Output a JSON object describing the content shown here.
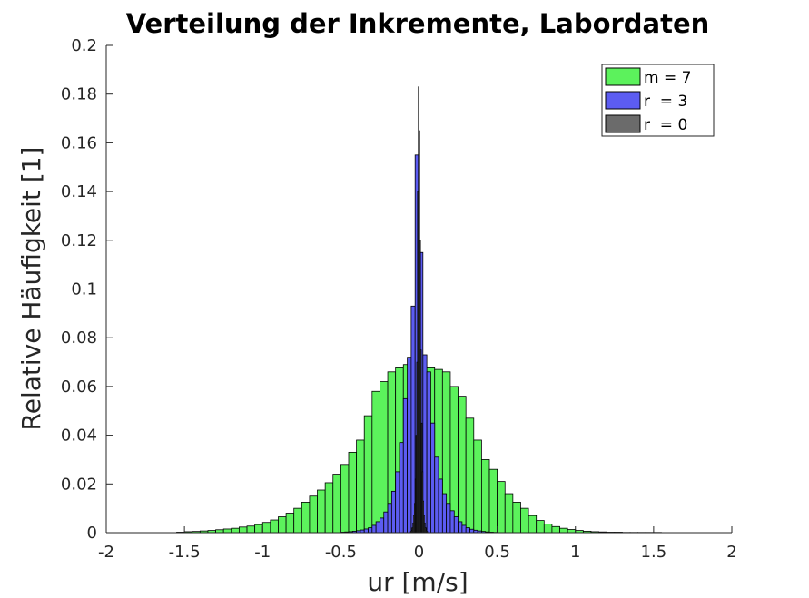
{
  "chart_data": {
    "type": "bar",
    "title": "Verteilung der Inkremente, Labordaten",
    "xlabel": "ur [m/s]",
    "ylabel": "Relative Häufigkeit [1]",
    "xlim": [
      -2,
      2
    ],
    "ylim": [
      0,
      0.2
    ],
    "xticks": [
      -2,
      -1.5,
      -1,
      -0.5,
      0,
      0.5,
      1,
      1.5,
      2
    ],
    "xtick_labels": [
      "-2",
      "-1.5",
      "-1",
      "-0.5",
      "0",
      "0.5",
      "1",
      "1.5",
      "2"
    ],
    "yticks": [
      0,
      0.02,
      0.04,
      0.06,
      0.08,
      0.1,
      0.12,
      0.14,
      0.16,
      0.18,
      0.2
    ],
    "ytick_labels": [
      "0",
      "0.02",
      "0.04",
      "0.06",
      "0.08",
      "0.1",
      "0.12",
      "0.14",
      "0.16",
      "0.18",
      "0.2"
    ],
    "grid": false,
    "legend_position": "top-right",
    "series": [
      {
        "name": "m = 7",
        "color": "#5cf25c",
        "bin_width": 0.05,
        "x": [
          -1.525,
          -1.475,
          -1.425,
          -1.375,
          -1.325,
          -1.275,
          -1.225,
          -1.175,
          -1.125,
          -1.075,
          -1.025,
          -0.975,
          -0.925,
          -0.875,
          -0.825,
          -0.775,
          -0.725,
          -0.675,
          -0.625,
          -0.575,
          -0.525,
          -0.475,
          -0.425,
          -0.375,
          -0.325,
          -0.275,
          -0.225,
          -0.175,
          -0.125,
          -0.075,
          -0.025,
          0.025,
          0.075,
          0.125,
          0.175,
          0.225,
          0.275,
          0.325,
          0.375,
          0.425,
          0.475,
          0.525,
          0.575,
          0.625,
          0.675,
          0.725,
          0.775,
          0.825,
          0.875,
          0.925,
          0.975,
          1.025,
          1.075,
          1.125,
          1.175,
          1.225,
          1.275,
          1.325,
          1.375,
          1.425,
          1.475,
          1.525
        ],
        "values": [
          0.0002,
          0.0004,
          0.0005,
          0.0007,
          0.0009,
          0.0012,
          0.0015,
          0.0018,
          0.0023,
          0.0027,
          0.0033,
          0.0042,
          0.0052,
          0.0065,
          0.008,
          0.01,
          0.0125,
          0.015,
          0.0175,
          0.0205,
          0.024,
          0.028,
          0.033,
          0.038,
          0.048,
          0.058,
          0.062,
          0.066,
          0.068,
          0.069,
          0.07,
          0.069,
          0.068,
          0.067,
          0.066,
          0.06,
          0.056,
          0.047,
          0.038,
          0.03,
          0.026,
          0.021,
          0.016,
          0.0125,
          0.01,
          0.007,
          0.005,
          0.0035,
          0.0025,
          0.0018,
          0.0013,
          0.0009,
          0.0006,
          0.0004,
          0.0003,
          0.0002,
          0.0002,
          0.0001,
          0.0001,
          0.0001,
          0.0001,
          0.0001
        ]
      },
      {
        "name": "r  = 3",
        "color": "#5c5cf2",
        "bin_width": 0.025,
        "x": [
          -0.4875,
          -0.4625,
          -0.4375,
          -0.4125,
          -0.3875,
          -0.3625,
          -0.3375,
          -0.3125,
          -0.2875,
          -0.2625,
          -0.2375,
          -0.2125,
          -0.1875,
          -0.1625,
          -0.1375,
          -0.1125,
          -0.0875,
          -0.0625,
          -0.0375,
          -0.0125,
          0.0125,
          0.0375,
          0.0625,
          0.0875,
          0.1125,
          0.1375,
          0.1625,
          0.1875,
          0.2125,
          0.2375,
          0.2625,
          0.2875,
          0.3125,
          0.3375,
          0.3625,
          0.3875,
          0.4125,
          0.4375,
          0.4625,
          0.4875
        ],
        "values": [
          0.0002,
          0.0003,
          0.0004,
          0.0006,
          0.0008,
          0.0011,
          0.0015,
          0.002,
          0.003,
          0.0045,
          0.006,
          0.0085,
          0.012,
          0.017,
          0.025,
          0.037,
          0.055,
          0.072,
          0.093,
          0.155,
          0.115,
          0.073,
          0.066,
          0.045,
          0.031,
          0.022,
          0.016,
          0.012,
          0.009,
          0.0065,
          0.0045,
          0.003,
          0.002,
          0.0014,
          0.001,
          0.0007,
          0.0005,
          0.0003,
          0.0002,
          0.0001
        ]
      },
      {
        "name": "r  = 0",
        "color": "#6b6b6b",
        "bin_width": 0.005,
        "x": [
          -0.0525,
          -0.0475,
          -0.0425,
          -0.0375,
          -0.0325,
          -0.0275,
          -0.0225,
          -0.0175,
          -0.0125,
          -0.0075,
          -0.0025,
          0.0025,
          0.0075,
          0.0125,
          0.0175,
          0.0225,
          0.0275,
          0.0325,
          0.0375,
          0.0425,
          0.0475,
          0.0525
        ],
        "values": [
          0.0005,
          0.001,
          0.002,
          0.004,
          0.007,
          0.012,
          0.022,
          0.04,
          0.07,
          0.14,
          0.183,
          0.165,
          0.12,
          0.075,
          0.045,
          0.025,
          0.013,
          0.007,
          0.004,
          0.002,
          0.001,
          0.0005
        ]
      }
    ]
  }
}
